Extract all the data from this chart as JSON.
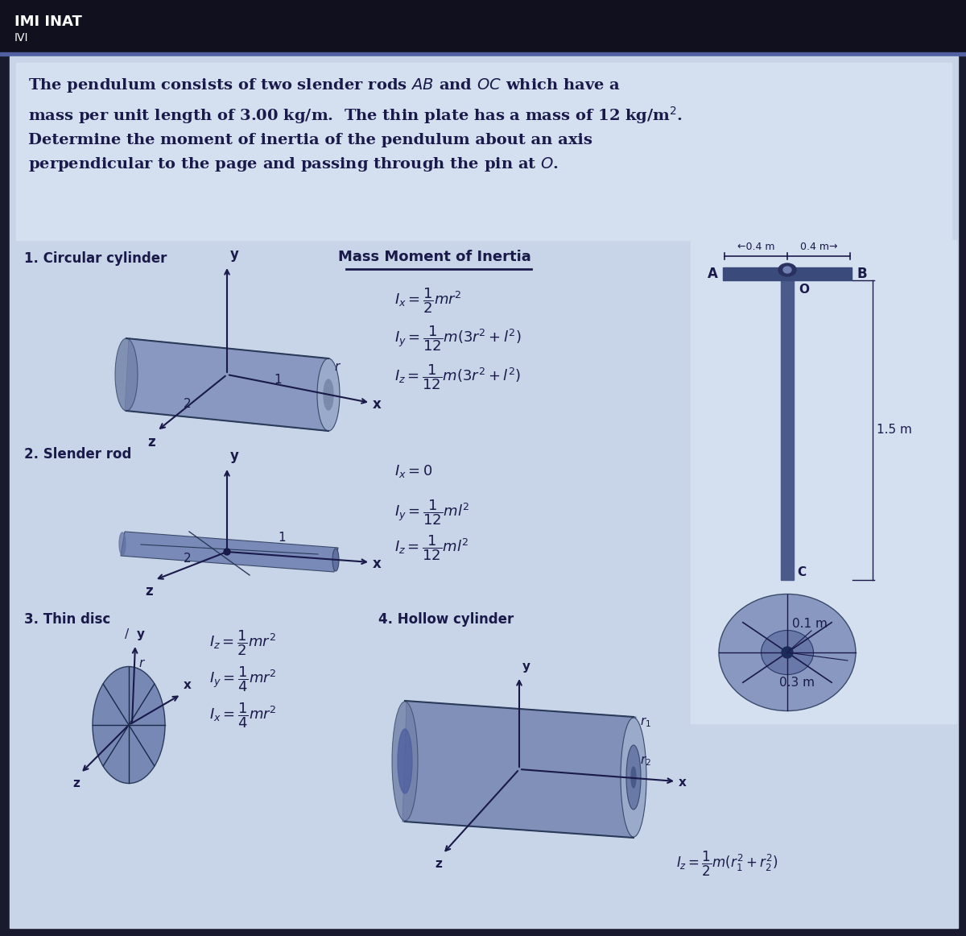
{
  "bg_dark": "#1a1a2e",
  "bg_medium": "#2a3a5a",
  "bg_light": "#c8d4e8",
  "bg_lighter": "#d4dff0",
  "text_dark": "#1a1a4a",
  "text_white": "#ffffff",
  "rod_color": "#5a6a8a",
  "rod_body": "#8090b0",
  "section1_label": "1. Circular cylinder",
  "section2_label": "2. Slender rod",
  "section3_label": "3. Thin disc",
  "section4_label": "4. Hollow cylinder",
  "mmi_title": "Mass Moment of Inertia",
  "formula_cyl_1": "$I_x = \\dfrac{1}{2}mr^2$",
  "formula_cyl_2": "$I_y = \\dfrac{1}{12}m(3r^2 + l^2)$",
  "formula_cyl_3": "$I_z = \\dfrac{1}{12}m(3r^2 + l^2)$",
  "formula_rod_1": "$I_x = 0$",
  "formula_rod_2": "$I_y = \\dfrac{1}{12}ml^2$",
  "formula_rod_3": "$I_z = \\dfrac{1}{12}ml^2$",
  "formula_disc_1": "$I_z = \\dfrac{1}{2}mr^2$",
  "formula_disc_2": "$I_y = \\dfrac{1}{4}mr^2$",
  "formula_disc_3": "$I_x = \\dfrac{1}{4}mr^2$",
  "formula_hollow": "$I_z = \\dfrac{1}{2}m(r_1^2 + r_2^2)$",
  "header_text": "IMI INAT",
  "header_sub": "IVI",
  "prob_line1": "The pendulum consists of two slender rods $\\mathit{AB}$ and $\\mathit{OC}$ which have a",
  "prob_line2": "mass per unit length of 3.00 kg/m.  The thin plate has a mass of 12 kg/m$^2$.",
  "prob_line3": "Determine the moment of inertia of the pendulum about an axis",
  "prob_line4": "perpendicular to the page and passing through the pin at $\\mathit{O}$.",
  "dim_04": "0.4 m",
  "dim_15": "1.5 m",
  "dim_01": "0.1 m",
  "dim_03": "0.3 m"
}
